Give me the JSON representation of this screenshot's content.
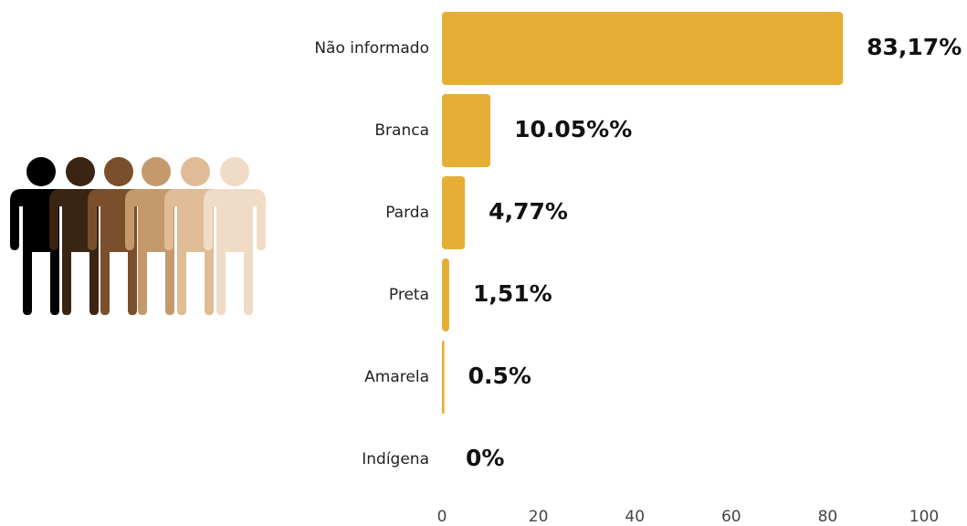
{
  "chart_data": {
    "type": "bar",
    "orientation": "horizontal",
    "categories": [
      "Não informado",
      "Branca",
      "Parda",
      "Preta",
      "Amarela",
      "Indígena"
    ],
    "values": [
      83.17,
      10.05,
      4.77,
      1.51,
      0.5,
      0
    ],
    "value_labels": [
      "83,17%",
      "10.05%%",
      "4,77%",
      "1,51%",
      "0.5%",
      "0%"
    ],
    "color": "#e5ae35",
    "xlim": [
      0,
      100
    ],
    "xticks": [
      0,
      20,
      40,
      60,
      80,
      100
    ],
    "grid": false
  }
}
